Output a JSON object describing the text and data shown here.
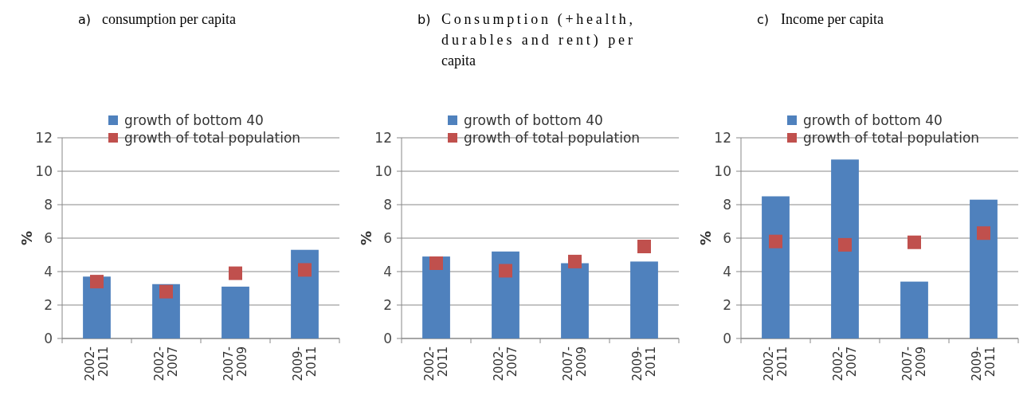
{
  "chart_data": [
    {
      "type": "bar",
      "title": "a) consumption per capita",
      "ylabel": "%",
      "categories": [
        "2002-2011",
        "2002-2007",
        "2007-2009",
        "2009-2011"
      ],
      "ylim": [
        0,
        12
      ],
      "yticks": [
        0,
        2,
        4,
        6,
        8,
        10,
        12
      ],
      "grid": "y",
      "legend": "top right",
      "series": [
        {
          "name": "growth of bottom 40",
          "color": "#4f81bd",
          "values": [
            3.7,
            3.25,
            3.1,
            5.3
          ]
        },
        {
          "type": "scatter",
          "name": "growth of total population",
          "color": "#c0504d",
          "marker": "square",
          "x": [
            "2002-2011",
            "2002-2007",
            "2007-2009",
            "2009-2011"
          ],
          "values": [
            3.4,
            2.8,
            3.9,
            4.1
          ]
        }
      ]
    },
    {
      "type": "bar",
      "title": "b) Consumption (+health, durables and rent) per capita",
      "ylabel": "%",
      "categories": [
        "2002-2011",
        "2002-2007",
        "2007-2009",
        "2009-2011"
      ],
      "ylim": [
        0,
        12
      ],
      "yticks": [
        0,
        2,
        4,
        6,
        8,
        10,
        12
      ],
      "grid": "y",
      "legend": "top right",
      "series": [
        {
          "name": "growth of bottom 40",
          "color": "#4f81bd",
          "values": [
            4.9,
            5.2,
            4.5,
            4.6
          ]
        },
        {
          "type": "scatter",
          "name": "growth of total population",
          "color": "#c0504d",
          "marker": "square",
          "x": [
            "2002-2011",
            "2002-2007",
            "2007-2009",
            "2009-2011"
          ],
          "values": [
            4.5,
            4.05,
            4.6,
            5.5
          ]
        }
      ]
    },
    {
      "type": "bar",
      "title": "c) Income per capita",
      "ylabel": "%",
      "categories": [
        "2002-2011",
        "2002-2007",
        "2007-2009",
        "2009-2011"
      ],
      "ylim": [
        0,
        12
      ],
      "yticks": [
        0,
        2,
        4,
        6,
        8,
        10,
        12
      ],
      "grid": "y",
      "legend": "top right",
      "series": [
        {
          "name": "growth of bottom 40",
          "color": "#4f81bd",
          "values": [
            8.5,
            10.7,
            3.4,
            8.3
          ]
        },
        {
          "type": "scatter",
          "name": "growth of total population",
          "color": "#c0504d",
          "marker": "square",
          "x": [
            "2002-2011",
            "2002-2007",
            "2007-2009",
            "2009-2011"
          ],
          "values": [
            5.8,
            5.6,
            5.75,
            6.3
          ]
        }
      ]
    }
  ]
}
